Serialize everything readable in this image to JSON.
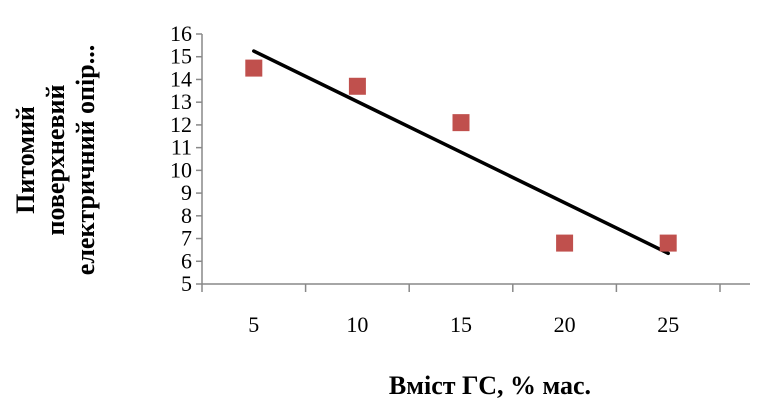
{
  "chart_data": {
    "type": "scatter",
    "points": [
      {
        "x": 5,
        "y": 14.5
      },
      {
        "x": 10,
        "y": 13.7
      },
      {
        "x": 15,
        "y": 12.1
      },
      {
        "x": 20,
        "y": 6.8
      },
      {
        "x": 25,
        "y": 6.8
      }
    ],
    "trendline": {
      "x": [
        5,
        25
      ],
      "y": [
        15.25,
        6.35
      ]
    },
    "x_ticks": [
      5,
      10,
      15,
      20,
      25
    ],
    "y_ticks": [
      5,
      6,
      7,
      8,
      9,
      10,
      11,
      12,
      13,
      14,
      15,
      16
    ],
    "xlim": [
      2.5,
      27.5
    ],
    "ylim": [
      5,
      16
    ],
    "xlabel": "Вміст ГС, % мас.",
    "ylabel_lines": [
      "Питомий",
      "поверхневий",
      "електричний опір..."
    ],
    "grid": false,
    "legend": "none",
    "colors": {
      "marker": "#c0504d",
      "trendline": "#000000",
      "axis": "#888888"
    }
  }
}
